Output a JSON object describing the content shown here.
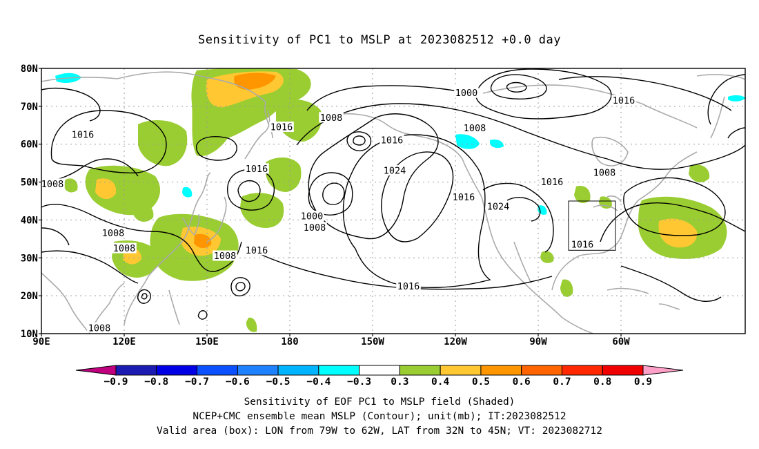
{
  "title": "Sensitivity of PC1 to MSLP at 2023082512 +0.0 day",
  "lat_labels": [
    "80N",
    "70N",
    "60N",
    "50N",
    "40N",
    "30N",
    "20N",
    "10N"
  ],
  "lon_labels": [
    "90E",
    "120E",
    "150E",
    "180",
    "150W",
    "120W",
    "90W",
    "60W"
  ],
  "contour_labels": [
    {
      "text": "1000",
      "lon": -116,
      "lat": 73.5
    },
    {
      "text": "1008",
      "lon": -165,
      "lat": 67
    },
    {
      "text": "1008",
      "lon": -113,
      "lat": 64.2
    },
    {
      "text": "1016",
      "lon": -59,
      "lat": 71.5
    },
    {
      "text": "1016",
      "lon": 105,
      "lat": 62.5
    },
    {
      "text": "1016",
      "lon": 177,
      "lat": 64.5
    },
    {
      "text": "1016",
      "lon": 168,
      "lat": 53.5
    },
    {
      "text": "1016",
      "lon": -143,
      "lat": 61
    },
    {
      "text": "1024",
      "lon": -142,
      "lat": 53
    },
    {
      "text": "1016",
      "lon": -117,
      "lat": 46
    },
    {
      "text": "1024",
      "lon": -104.5,
      "lat": 43.5
    },
    {
      "text": "1016",
      "lon": -85,
      "lat": 50
    },
    {
      "text": "1008",
      "lon": -66,
      "lat": 52.5
    },
    {
      "text": "1008",
      "lon": 94,
      "lat": 49.5
    },
    {
      "text": "1008",
      "lon": 116,
      "lat": 36.5
    },
    {
      "text": "1008",
      "lon": 120,
      "lat": 32.5
    },
    {
      "text": "1008",
      "lon": 156.5,
      "lat": 30.5
    },
    {
      "text": "1000",
      "lon": -172,
      "lat": 41
    },
    {
      "text": "1008",
      "lon": -171,
      "lat": 38
    },
    {
      "text": "1016",
      "lon": 168,
      "lat": 32
    },
    {
      "text": "1016",
      "lon": -137,
      "lat": 22.5
    },
    {
      "text": "1016",
      "lon": -74,
      "lat": 33.5
    },
    {
      "text": "1008",
      "lon": 111,
      "lat": 11.5
    }
  ],
  "colorbar": {
    "ticks": [
      "−0.9",
      "−0.8",
      "−0.7",
      "−0.6",
      "−0.5",
      "−0.4",
      "−0.3",
      "0.3",
      "0.4",
      "0.5",
      "0.6",
      "0.7",
      "0.8",
      "0.9"
    ],
    "colors": [
      "#c0007f",
      "#1c1cb4",
      "#0000e6",
      "#0a50ff",
      "#1e82ff",
      "#00b4ff",
      "#00ffff",
      "#ffffff",
      "#9acd32",
      "#ffc832",
      "#ff9600",
      "#ff6400",
      "#ff2800",
      "#f00000",
      "#ffa0c8"
    ]
  },
  "valid_box": {
    "lon_min": -79,
    "lon_max": -62,
    "lat_min": 32,
    "lat_max": 45
  },
  "caption": [
    "Sensitivity of EOF PC1 to MSLP field (Shaded)",
    "NCEP+CMC ensemble mean MSLP (Contour); unit(mb); IT:2023082512",
    "Valid area (box): LON from 79W to 62W, LAT from 32N to 45N; VT: 2023082712"
  ],
  "colors": {
    "land_outline": "#aaaaaa",
    "contour": "#000000",
    "grid": "#999999",
    "positive_03": "#9acd32",
    "positive_04": "#ffc832",
    "positive_05": "#ff9600",
    "negative_03": "#00ffff"
  }
}
